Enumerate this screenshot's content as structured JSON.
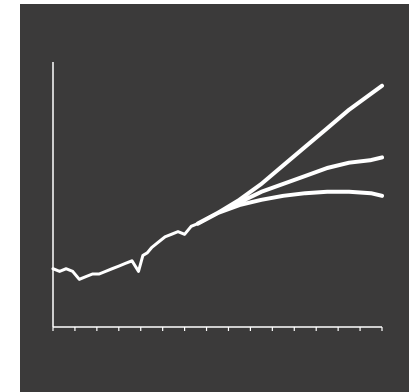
{
  "colors": {
    "panel_background": "#3b3a3a",
    "foreground": "#ffffff",
    "page_background": "#ffffff"
  },
  "chart_data": {
    "type": "line",
    "title": "",
    "xlabel": "",
    "ylabel": "",
    "grid": false,
    "legend": "none",
    "x_ticks": 15,
    "xlim": [
      0,
      15
    ],
    "ylim": [
      0,
      100
    ],
    "historical": {
      "x": [
        0,
        0.3,
        0.6,
        0.9,
        1.2,
        1.5,
        1.8,
        2.1,
        2.4,
        2.7,
        3.0,
        3.3,
        3.6,
        3.9,
        4.1,
        4.3,
        4.5,
        4.8,
        5.1,
        5.4,
        5.7,
        6.0,
        6.3,
        6.6
      ],
      "y": [
        22,
        21,
        22,
        21,
        18,
        19,
        20,
        20,
        21,
        22,
        23,
        24,
        25,
        21,
        27,
        28,
        30,
        32,
        34,
        35,
        36,
        35,
        38,
        39
      ]
    },
    "series": [
      {
        "x": [
          6.6,
          7.5,
          8.5,
          9.5,
          10.5,
          11.5,
          12.5,
          13.5,
          14.5,
          15
        ],
        "values": [
          39,
          43,
          48,
          54,
          61,
          68,
          75,
          82,
          88,
          91
        ]
      },
      {
        "x": [
          6.6,
          7.5,
          8.5,
          9.5,
          10.5,
          11.5,
          12.5,
          13.5,
          14.5,
          15
        ],
        "values": [
          39,
          43,
          47,
          51,
          54,
          57,
          60,
          62,
          63,
          64
        ]
      },
      {
        "x": [
          6.6,
          7.5,
          8.5,
          9.5,
          10.5,
          11.5,
          12.5,
          13.5,
          14.5,
          15
        ],
        "values": [
          39,
          43,
          46,
          48,
          49.5,
          50.5,
          51,
          51,
          50.5,
          49.5
        ]
      }
    ]
  }
}
